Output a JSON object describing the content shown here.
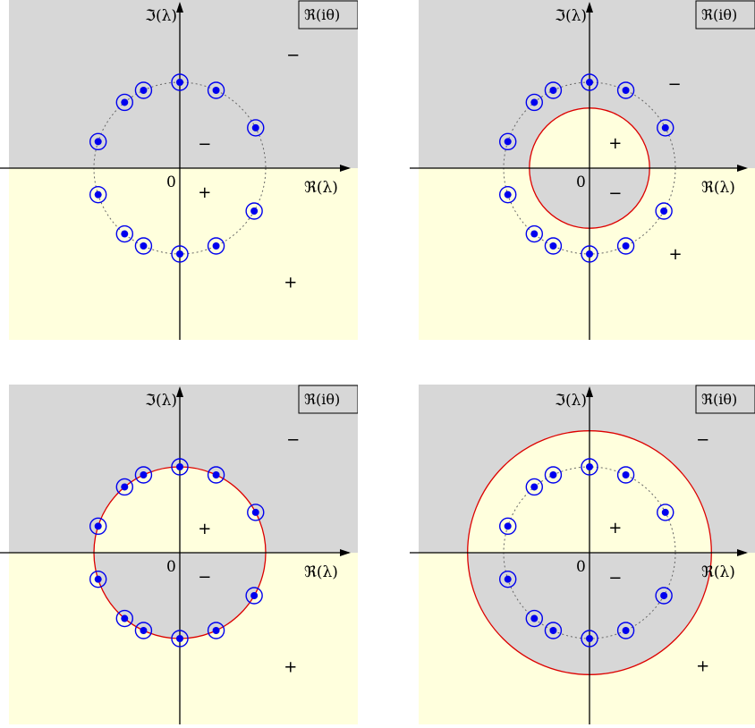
{
  "figure": {
    "axis_labels": {
      "real": "ℜ(λ)",
      "imag": "ℑ(λ)",
      "origin": "0"
    },
    "legend": "ℜ(iθ)",
    "sign_labels": {
      "minus": "−",
      "plus": "+"
    },
    "colors": {
      "upper_region": "#d7d7d7",
      "lower_region": "#ffffdd",
      "circle": "#dd0000",
      "point": "#0000ee",
      "axis": "#000000",
      "dotted_circle": "#666666"
    },
    "eigenvalue_angles_deg": [
      90,
      115,
      130,
      162,
      198,
      230,
      245,
      270,
      295,
      330,
      28,
      65
    ],
    "panels": [
      {
        "id": "top-left",
        "red_circle_radius": 0,
        "show_dotted": true,
        "signs": [
          {
            "sym": "minus",
            "re": 1.32,
            "im": 1.32
          },
          {
            "sym": "minus",
            "re": 0.29,
            "im": 0.28
          },
          {
            "sym": "plus",
            "re": 0.29,
            "im": -0.28
          },
          {
            "sym": "plus",
            "re": 1.29,
            "im": -1.33
          }
        ]
      },
      {
        "id": "top-right",
        "red_circle_radius": 0.7,
        "show_dotted": true,
        "signs": [
          {
            "sym": "minus",
            "re": 0.99,
            "im": 0.98
          },
          {
            "sym": "plus",
            "re": 0.3,
            "im": 0.29
          },
          {
            "sym": "minus",
            "re": 0.3,
            "im": -0.29
          },
          {
            "sym": "plus",
            "re": 1.0,
            "im": -1.0
          }
        ]
      },
      {
        "id": "bottom-left",
        "red_circle_radius": 1.0,
        "show_dotted": false,
        "signs": [
          {
            "sym": "minus",
            "re": 1.32,
            "im": 1.32
          },
          {
            "sym": "plus",
            "re": 0.29,
            "im": 0.28
          },
          {
            "sym": "minus",
            "re": 0.29,
            "im": -0.28
          },
          {
            "sym": "plus",
            "re": 1.29,
            "im": -1.33
          }
        ]
      },
      {
        "id": "bottom-right",
        "red_circle_radius": 1.42,
        "show_dotted": true,
        "signs": [
          {
            "sym": "minus",
            "re": 1.32,
            "im": 1.32
          },
          {
            "sym": "plus",
            "re": 0.3,
            "im": 0.29
          },
          {
            "sym": "minus",
            "re": 0.3,
            "im": -0.29
          },
          {
            "sym": "plus",
            "re": 1.32,
            "im": -1.32
          }
        ]
      }
    ]
  }
}
